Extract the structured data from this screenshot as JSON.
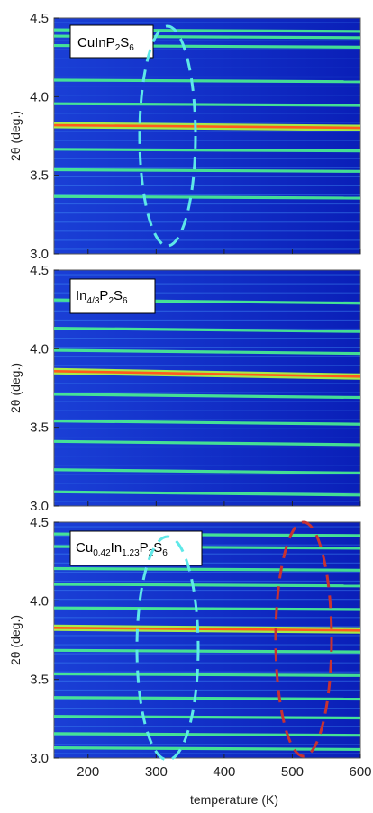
{
  "chart_data": {
    "type": "heatmap",
    "xlabel": "temperature (K)",
    "xlim": [
      150,
      600
    ],
    "x_ticks": [
      "200",
      "300",
      "400",
      "500",
      "600"
    ],
    "panels": [
      {
        "sample": "CuInP2S6",
        "label_main": [
          "CuInP",
          "S"
        ],
        "label_sub": [
          "2",
          "6"
        ],
        "ylabel": "2θ (deg.)",
        "ylim": [
          3.0,
          4.5
        ],
        "y_ticks": [
          "4.5",
          "4.0",
          "3.5",
          "3.0"
        ],
        "peaks_2theta": [
          4.42,
          4.38,
          4.32,
          4.1,
          3.95,
          3.81,
          3.66,
          3.53,
          3.36
        ],
        "strong_peak_2theta": 3.81,
        "highlight": {
          "color": "#5ee8e8",
          "x_center_K": 315,
          "y_center_2theta": 3.75
        }
      },
      {
        "sample": "In4/3P2S6",
        "label_main": [
          "In",
          "P",
          "S"
        ],
        "label_sub": [
          "4/3",
          "2",
          "6"
        ],
        "ylabel": "2θ (deg.)",
        "ylim": [
          3.0,
          4.5
        ],
        "y_ticks": [
          "4.5",
          "4.0",
          "3.5",
          "3.0"
        ],
        "peaks_2theta": [
          4.3,
          4.12,
          3.98,
          3.84,
          3.7,
          3.53,
          3.4,
          3.22,
          3.08
        ],
        "strong_peak_2theta": 3.84,
        "highlight": null
      },
      {
        "sample": "Cu0.42In1.23P2S6",
        "label_main": [
          "Cu",
          "In",
          "P",
          "S"
        ],
        "label_sub": [
          "0.42",
          "1.23",
          "2",
          "6"
        ],
        "ylabel": "2θ (deg.)",
        "ylim": [
          3.0,
          4.5
        ],
        "y_ticks": [
          "4.5",
          "4.0",
          "3.5",
          "3.0"
        ],
        "peaks_2theta": [
          4.42,
          4.34,
          4.2,
          4.1,
          3.95,
          3.82,
          3.68,
          3.53,
          3.38,
          3.26,
          3.15,
          3.06
        ],
        "strong_peak_2theta": 3.82,
        "highlight": {
          "color": "#5ee8e8",
          "x_center_K": 315,
          "y_center_2theta": 3.75
        },
        "highlight2": {
          "color": "#c83232",
          "x_center_K": 515,
          "y_center_2theta": 3.75
        }
      }
    ]
  }
}
